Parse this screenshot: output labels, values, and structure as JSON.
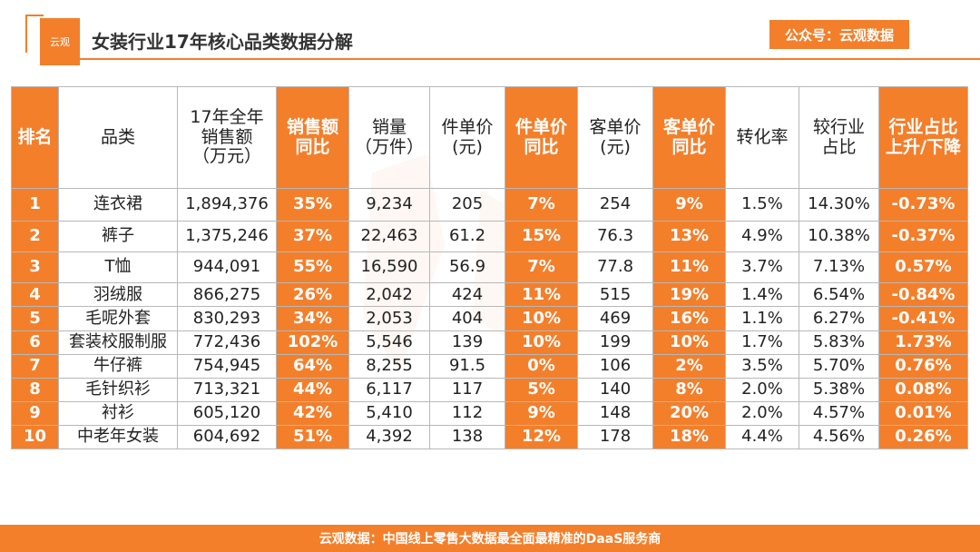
{
  "header": {
    "logo_text": "云观",
    "title": "女装行业17年核心品类数据分解",
    "badge": "公众号：云观数据"
  },
  "table": {
    "columns": [
      {
        "label": "排名",
        "highlight": true
      },
      {
        "label": "品类",
        "highlight": false
      },
      {
        "label": "17年全年\n销售额\n（万元）",
        "highlight": false
      },
      {
        "label": "销售额\n同比",
        "highlight": true
      },
      {
        "label": "销量\n（万件）",
        "highlight": false
      },
      {
        "label": "件单价\n(元)",
        "highlight": false
      },
      {
        "label": "件单价\n同比",
        "highlight": true
      },
      {
        "label": "客单价\n(元)",
        "highlight": false
      },
      {
        "label": "客单价\n同比",
        "highlight": true
      },
      {
        "label": "转化率",
        "highlight": false
      },
      {
        "label": "较行业\n占比",
        "highlight": false
      },
      {
        "label": "行业占比\n上升/下降",
        "highlight": true
      }
    ],
    "rows": [
      [
        "1",
        "连衣裙",
        "1,894,376",
        "35%",
        "9,234",
        "205",
        "7%",
        "254",
        "9%",
        "1.5%",
        "14.30%",
        "-0.73%"
      ],
      [
        "2",
        "裤子",
        "1,375,246",
        "37%",
        "22,463",
        "61.2",
        "15%",
        "76.3",
        "13%",
        "4.9%",
        "10.38%",
        "-0.37%"
      ],
      [
        "3",
        "T恤",
        "944,091",
        "55%",
        "16,590",
        "56.9",
        "7%",
        "77.8",
        "11%",
        "3.7%",
        "7.13%",
        "0.57%"
      ],
      [
        "4",
        "羽绒服",
        "866,275",
        "26%",
        "2,042",
        "424",
        "11%",
        "515",
        "19%",
        "1.4%",
        "6.54%",
        "-0.84%"
      ],
      [
        "5",
        "毛呢外套",
        "830,293",
        "34%",
        "2,053",
        "404",
        "10%",
        "469",
        "16%",
        "1.1%",
        "6.27%",
        "-0.41%"
      ],
      [
        "6",
        "套装校服制服",
        "772,436",
        "102%",
        "5,546",
        "139",
        "10%",
        "199",
        "10%",
        "1.7%",
        "5.83%",
        "1.73%"
      ],
      [
        "7",
        "牛仔裤",
        "754,945",
        "64%",
        "8,255",
        "91.5",
        "0%",
        "106",
        "2%",
        "3.5%",
        "5.70%",
        "0.76%"
      ],
      [
        "8",
        "毛针织衫",
        "713,321",
        "44%",
        "6,117",
        "117",
        "5%",
        "140",
        "8%",
        "2.0%",
        "5.38%",
        "0.08%"
      ],
      [
        "9",
        "衬衫",
        "605,120",
        "42%",
        "5,410",
        "112",
        "9%",
        "148",
        "20%",
        "2.0%",
        "4.57%",
        "0.01%"
      ],
      [
        "10",
        "中老年女装",
        "604,692",
        "51%",
        "4,392",
        "138",
        "12%",
        "178",
        "18%",
        "4.4%",
        "4.56%",
        "0.26%"
      ]
    ]
  },
  "footer": {
    "text": "云观数据：中国线上零售大数据最全面最精准的DaaS服务商"
  },
  "colors": {
    "accent": "#f37f2b",
    "border": "#b8b8b8"
  }
}
